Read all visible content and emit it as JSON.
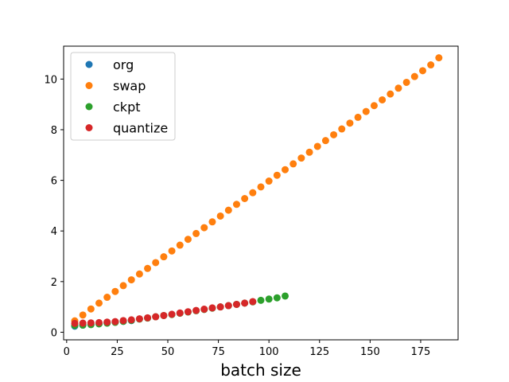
{
  "chart_data": {
    "type": "scatter",
    "title": "",
    "xlabel": "batch size",
    "ylabel": "",
    "xlim": [
      -1.5,
      193.5
    ],
    "ylim": [
      -0.3,
      11.3
    ],
    "xticks": [
      0,
      25,
      50,
      75,
      100,
      125,
      150,
      175
    ],
    "yticks": [
      0,
      2,
      4,
      6,
      8,
      10
    ],
    "grid": false,
    "legend_position": "top-left",
    "series": [
      {
        "name": "org",
        "color": "#1f77b4",
        "x": [
          4,
          8,
          12,
          16,
          20,
          24,
          28,
          32
        ],
        "y": [
          0.24,
          0.28,
          0.31,
          0.34,
          0.37,
          0.4,
          0.43,
          0.46
        ]
      },
      {
        "name": "swap",
        "color": "#ff7f0e",
        "x": [
          4,
          8,
          12,
          16,
          20,
          24,
          28,
          32,
          36,
          40,
          44,
          48,
          52,
          56,
          60,
          64,
          68,
          72,
          76,
          80,
          84,
          88,
          92,
          96,
          100,
          104,
          108,
          112,
          116,
          120,
          124,
          128,
          132,
          136,
          140,
          144,
          148,
          152,
          156,
          160,
          164,
          168,
          172,
          176,
          180,
          184
        ],
        "y": [
          0.45,
          0.68,
          0.92,
          1.15,
          1.38,
          1.61,
          1.84,
          2.07,
          2.3,
          2.52,
          2.75,
          2.98,
          3.21,
          3.44,
          3.67,
          3.9,
          4.13,
          4.36,
          4.59,
          4.82,
          5.05,
          5.28,
          5.51,
          5.74,
          5.97,
          6.2,
          6.42,
          6.65,
          6.88,
          7.11,
          7.34,
          7.57,
          7.8,
          8.03,
          8.26,
          8.49,
          8.72,
          8.95,
          9.18,
          9.41,
          9.64,
          9.87,
          10.1,
          10.33,
          10.56,
          10.84
        ]
      },
      {
        "name": "ckpt",
        "color": "#2ca02c",
        "x": [
          4,
          8,
          12,
          16,
          20,
          24,
          28,
          32,
          36,
          40,
          44,
          48,
          52,
          56,
          60,
          64,
          68,
          72,
          76,
          80,
          84,
          88,
          92,
          96,
          100,
          104,
          108
        ],
        "y": [
          0.27,
          0.28,
          0.3,
          0.33,
          0.36,
          0.39,
          0.43,
          0.47,
          0.52,
          0.56,
          0.61,
          0.66,
          0.7,
          0.75,
          0.8,
          0.85,
          0.9,
          0.95,
          1.0,
          1.05,
          1.1,
          1.15,
          1.2,
          1.26,
          1.31,
          1.36,
          1.43
        ]
      },
      {
        "name": "quantize",
        "color": "#d62728",
        "x": [
          4,
          8,
          12,
          16,
          20,
          24,
          28,
          32,
          36,
          40,
          44,
          48,
          52,
          56,
          60,
          64,
          68,
          72,
          76,
          80,
          84,
          88,
          92
        ],
        "y": [
          0.35,
          0.36,
          0.37,
          0.38,
          0.4,
          0.42,
          0.46,
          0.49,
          0.53,
          0.57,
          0.61,
          0.66,
          0.71,
          0.76,
          0.81,
          0.86,
          0.91,
          0.96,
          1.0,
          1.05,
          1.1,
          1.15,
          1.21
        ]
      }
    ]
  }
}
